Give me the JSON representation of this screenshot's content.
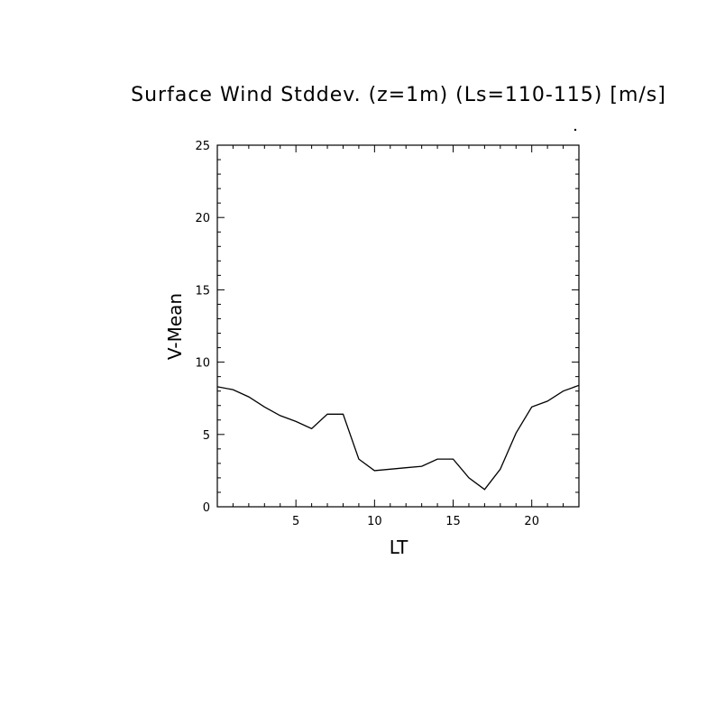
{
  "chart_data": {
    "type": "line",
    "title": "Surface Wind Stddev. (z=1m) (Ls=110-115) [m/s]",
    "xlabel": "LT",
    "ylabel": "V-Mean",
    "xlim": [
      0,
      23
    ],
    "ylim": [
      0,
      25
    ],
    "x_ticks": [
      5,
      10,
      15,
      20
    ],
    "y_ticks": [
      0,
      5,
      10,
      15,
      20,
      25
    ],
    "x_tick_labels": [
      "5",
      "10",
      "15",
      "20"
    ],
    "y_tick_labels": [
      "0",
      "5",
      "10",
      "15",
      "20",
      "25"
    ],
    "grid": false,
    "line_color": "#000000",
    "series": [
      {
        "x": [
          0,
          1,
          2,
          3,
          4,
          5,
          6,
          7,
          8,
          9,
          10,
          11,
          12,
          13,
          14,
          15,
          16,
          17,
          18,
          19,
          20,
          21,
          22,
          23
        ],
        "values": [
          8.3,
          8.1,
          7.6,
          6.9,
          6.3,
          5.9,
          5.4,
          6.4,
          6.4,
          3.3,
          2.5,
          2.6,
          2.7,
          2.8,
          3.3,
          3.3,
          2.0,
          1.2,
          2.6,
          5.1,
          6.9,
          7.3,
          8.0,
          8.4
        ]
      }
    ]
  }
}
